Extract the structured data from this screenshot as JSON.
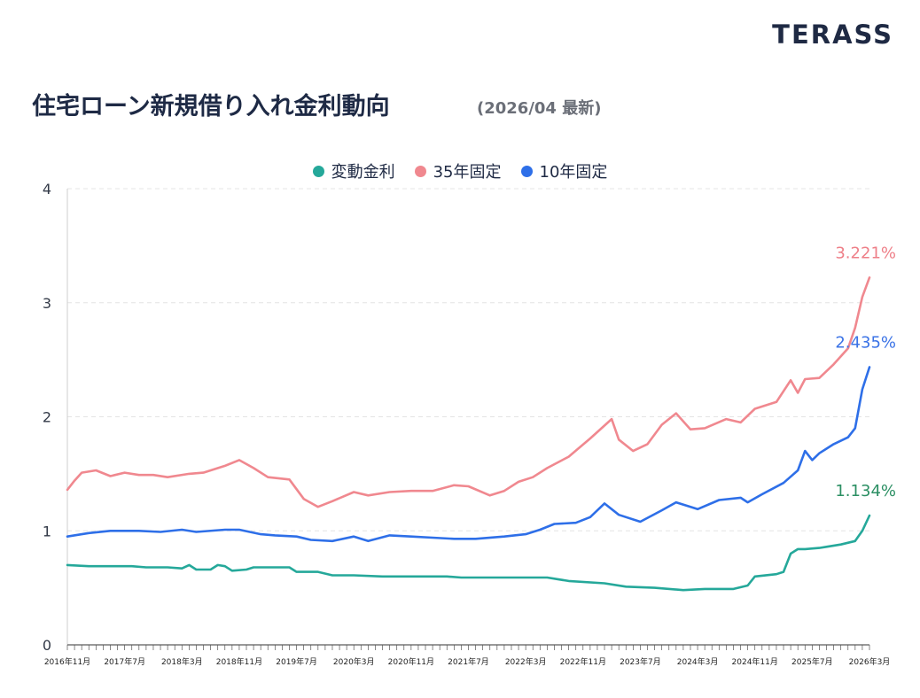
{
  "brand": "TERASS",
  "title": "住宅ローン新規借り入れ金利動向",
  "subtitle": "(2026/04 最新)",
  "chart_data": {
    "type": "line",
    "ylim": [
      0,
      4
    ],
    "yticks": [
      "0",
      "1",
      "2",
      "3",
      "4"
    ],
    "x_start": "2016-11",
    "x_end": "2026-03",
    "grid": "horizontal dashed",
    "legend_position": "top-center",
    "xtick_labels": [
      "2016年11月",
      "2017年7月",
      "2018年3月",
      "2018年11月",
      "2019年7月",
      "2020年3月",
      "2020年11月",
      "2021年7月",
      "2022年3月",
      "2022年11月",
      "2023年7月",
      "2024年3月",
      "2024年11月",
      "2025年7月",
      "2026年3月"
    ],
    "series": [
      {
        "name": "変動金利",
        "color": "#25a89a",
        "label_color": "#2b8f63",
        "end_label": "1.134%",
        "points": [
          [
            "2016-11",
            0.7
          ],
          [
            "2017-02",
            0.69
          ],
          [
            "2017-05",
            0.69
          ],
          [
            "2017-08",
            0.69
          ],
          [
            "2017-10",
            0.68
          ],
          [
            "2018-01",
            0.68
          ],
          [
            "2018-03",
            0.67
          ],
          [
            "2018-04",
            0.7
          ],
          [
            "2018-05",
            0.66
          ],
          [
            "2018-07",
            0.66
          ],
          [
            "2018-08",
            0.7
          ],
          [
            "2018-09",
            0.69
          ],
          [
            "2018-10",
            0.65
          ],
          [
            "2018-12",
            0.66
          ],
          [
            "2019-01",
            0.68
          ],
          [
            "2019-04",
            0.68
          ],
          [
            "2019-06",
            0.68
          ],
          [
            "2019-07",
            0.64
          ],
          [
            "2019-10",
            0.64
          ],
          [
            "2019-12",
            0.61
          ],
          [
            "2020-03",
            0.61
          ],
          [
            "2020-07",
            0.6
          ],
          [
            "2020-11",
            0.6
          ],
          [
            "2021-04",
            0.6
          ],
          [
            "2021-06",
            0.59
          ],
          [
            "2021-07",
            0.59
          ],
          [
            "2021-12",
            0.59
          ],
          [
            "2022-06",
            0.59
          ],
          [
            "2022-09",
            0.56
          ],
          [
            "2023-02",
            0.54
          ],
          [
            "2023-05",
            0.51
          ],
          [
            "2023-09",
            0.5
          ],
          [
            "2024-01",
            0.48
          ],
          [
            "2024-04",
            0.49
          ],
          [
            "2024-08",
            0.49
          ],
          [
            "2024-10",
            0.52
          ],
          [
            "2024-11",
            0.6
          ],
          [
            "2025-02",
            0.62
          ],
          [
            "2025-03",
            0.64
          ],
          [
            "2025-04",
            0.8
          ],
          [
            "2025-05",
            0.84
          ],
          [
            "2025-06",
            0.84
          ],
          [
            "2025-08",
            0.85
          ],
          [
            "2025-09",
            0.86
          ],
          [
            "2025-11",
            0.88
          ],
          [
            "2026-01",
            0.91
          ],
          [
            "2026-02",
            1.0
          ],
          [
            "2026-03",
            1.134
          ]
        ]
      },
      {
        "name": "35年固定",
        "color": "#f0888f",
        "label_color": "#ee7f88",
        "end_label": "3.221%",
        "points": [
          [
            "2016-11",
            1.36
          ],
          [
            "2016-12",
            1.44
          ],
          [
            "2017-01",
            1.51
          ],
          [
            "2017-03",
            1.53
          ],
          [
            "2017-05",
            1.48
          ],
          [
            "2017-07",
            1.51
          ],
          [
            "2017-09",
            1.49
          ],
          [
            "2017-11",
            1.49
          ],
          [
            "2018-01",
            1.47
          ],
          [
            "2018-04",
            1.5
          ],
          [
            "2018-06",
            1.51
          ],
          [
            "2018-09",
            1.57
          ],
          [
            "2018-11",
            1.62
          ],
          [
            "2019-01",
            1.55
          ],
          [
            "2019-03",
            1.47
          ],
          [
            "2019-06",
            1.45
          ],
          [
            "2019-08",
            1.28
          ],
          [
            "2019-10",
            1.21
          ],
          [
            "2019-12",
            1.26
          ],
          [
            "2020-03",
            1.34
          ],
          [
            "2020-05",
            1.31
          ],
          [
            "2020-08",
            1.34
          ],
          [
            "2020-11",
            1.35
          ],
          [
            "2021-02",
            1.35
          ],
          [
            "2021-05",
            1.4
          ],
          [
            "2021-07",
            1.39
          ],
          [
            "2021-10",
            1.31
          ],
          [
            "2021-12",
            1.35
          ],
          [
            "2022-02",
            1.43
          ],
          [
            "2022-04",
            1.47
          ],
          [
            "2022-06",
            1.55
          ],
          [
            "2022-09",
            1.65
          ],
          [
            "2022-12",
            1.81
          ],
          [
            "2023-03",
            1.98
          ],
          [
            "2023-04",
            1.8
          ],
          [
            "2023-06",
            1.7
          ],
          [
            "2023-08",
            1.76
          ],
          [
            "2023-10",
            1.93
          ],
          [
            "2023-12",
            2.03
          ],
          [
            "2024-02",
            1.89
          ],
          [
            "2024-04",
            1.9
          ],
          [
            "2024-07",
            1.98
          ],
          [
            "2024-09",
            1.95
          ],
          [
            "2024-11",
            2.07
          ],
          [
            "2025-02",
            2.13
          ],
          [
            "2025-04",
            2.32
          ],
          [
            "2025-05",
            2.21
          ],
          [
            "2025-06",
            2.33
          ],
          [
            "2025-08",
            2.34
          ],
          [
            "2025-10",
            2.46
          ],
          [
            "2025-12",
            2.6
          ],
          [
            "2026-01",
            2.78
          ],
          [
            "2026-02",
            3.05
          ],
          [
            "2026-03",
            3.221
          ]
        ]
      },
      {
        "name": "10年固定",
        "color": "#2e6fe8",
        "label_color": "#3b73e6",
        "end_label": "2.435%",
        "points": [
          [
            "2016-11",
            0.95
          ],
          [
            "2017-02",
            0.98
          ],
          [
            "2017-05",
            1.0
          ],
          [
            "2017-09",
            1.0
          ],
          [
            "2017-12",
            0.99
          ],
          [
            "2018-03",
            1.01
          ],
          [
            "2018-05",
            0.99
          ],
          [
            "2018-09",
            1.01
          ],
          [
            "2018-11",
            1.01
          ],
          [
            "2019-02",
            0.97
          ],
          [
            "2019-04",
            0.96
          ],
          [
            "2019-07",
            0.95
          ],
          [
            "2019-09",
            0.92
          ],
          [
            "2019-12",
            0.91
          ],
          [
            "2020-03",
            0.95
          ],
          [
            "2020-05",
            0.91
          ],
          [
            "2020-08",
            0.96
          ],
          [
            "2020-11",
            0.95
          ],
          [
            "2021-02",
            0.94
          ],
          [
            "2021-05",
            0.93
          ],
          [
            "2021-08",
            0.93
          ],
          [
            "2021-12",
            0.95
          ],
          [
            "2022-03",
            0.97
          ],
          [
            "2022-05",
            1.01
          ],
          [
            "2022-07",
            1.06
          ],
          [
            "2022-10",
            1.07
          ],
          [
            "2022-12",
            1.12
          ],
          [
            "2023-02",
            1.24
          ],
          [
            "2023-04",
            1.14
          ],
          [
            "2023-07",
            1.08
          ],
          [
            "2023-10",
            1.18
          ],
          [
            "2023-12",
            1.25
          ],
          [
            "2024-03",
            1.19
          ],
          [
            "2024-06",
            1.27
          ],
          [
            "2024-09",
            1.29
          ],
          [
            "2024-10",
            1.25
          ],
          [
            "2024-12",
            1.32
          ],
          [
            "2025-03",
            1.42
          ],
          [
            "2025-05",
            1.53
          ],
          [
            "2025-06",
            1.7
          ],
          [
            "2025-07",
            1.62
          ],
          [
            "2025-08",
            1.68
          ],
          [
            "2025-10",
            1.76
          ],
          [
            "2025-12",
            1.82
          ],
          [
            "2026-01",
            1.9
          ],
          [
            "2026-02",
            2.24
          ],
          [
            "2026-03",
            2.435
          ]
        ]
      }
    ]
  }
}
